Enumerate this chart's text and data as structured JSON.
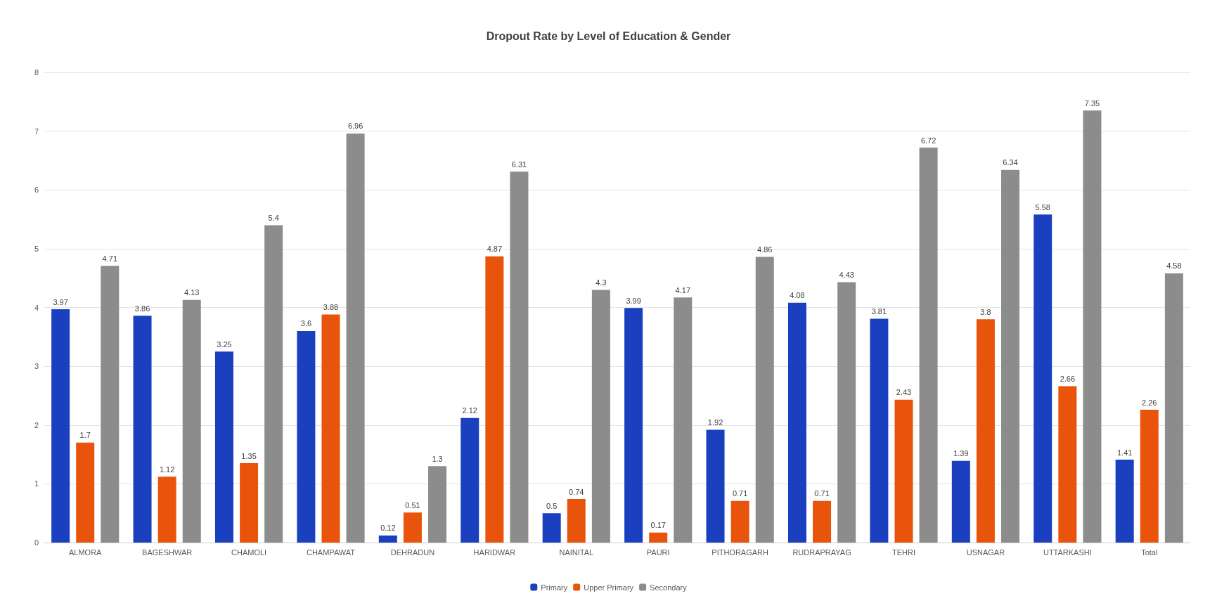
{
  "chart_data": {
    "type": "bar",
    "title": "Dropout Rate by Level of Education & Gender",
    "categories": [
      "ALMORA",
      "BAGESHWAR",
      "CHAMOLI",
      "CHAMPAWAT",
      "DEHRADUN",
      "HARIDWAR",
      "NAINITAL",
      "PAURI",
      "PITHORAGARH",
      "RUDRAPRAYAG",
      "TEHRI",
      "USNAGAR",
      "UTTARKASHI",
      "Total"
    ],
    "series": [
      {
        "name": "Primary",
        "color": "#1a40c0",
        "values": [
          3.97,
          3.86,
          3.25,
          3.6,
          0.12,
          2.12,
          0.5,
          3.99,
          1.92,
          4.08,
          3.81,
          1.39,
          5.58,
          1.41
        ]
      },
      {
        "name": "Upper Primary",
        "color": "#e8540c",
        "values": [
          1.7,
          1.12,
          1.35,
          3.88,
          0.51,
          4.87,
          0.74,
          0.17,
          0.71,
          0.71,
          2.43,
          3.8,
          2.66,
          2.26
        ]
      },
      {
        "name": "Secondary",
        "color": "#8c8c8c",
        "values": [
          4.71,
          4.13,
          5.4,
          6.96,
          1.3,
          6.31,
          4.3,
          4.17,
          4.86,
          4.43,
          6.72,
          6.34,
          7.35,
          4.58
        ]
      }
    ],
    "ylim": [
      0,
      8
    ],
    "yticks": [
      0,
      1,
      2,
      3,
      4,
      5,
      6,
      7,
      8
    ],
    "grid": "y",
    "legend": "bottom",
    "data_labels": true
  }
}
